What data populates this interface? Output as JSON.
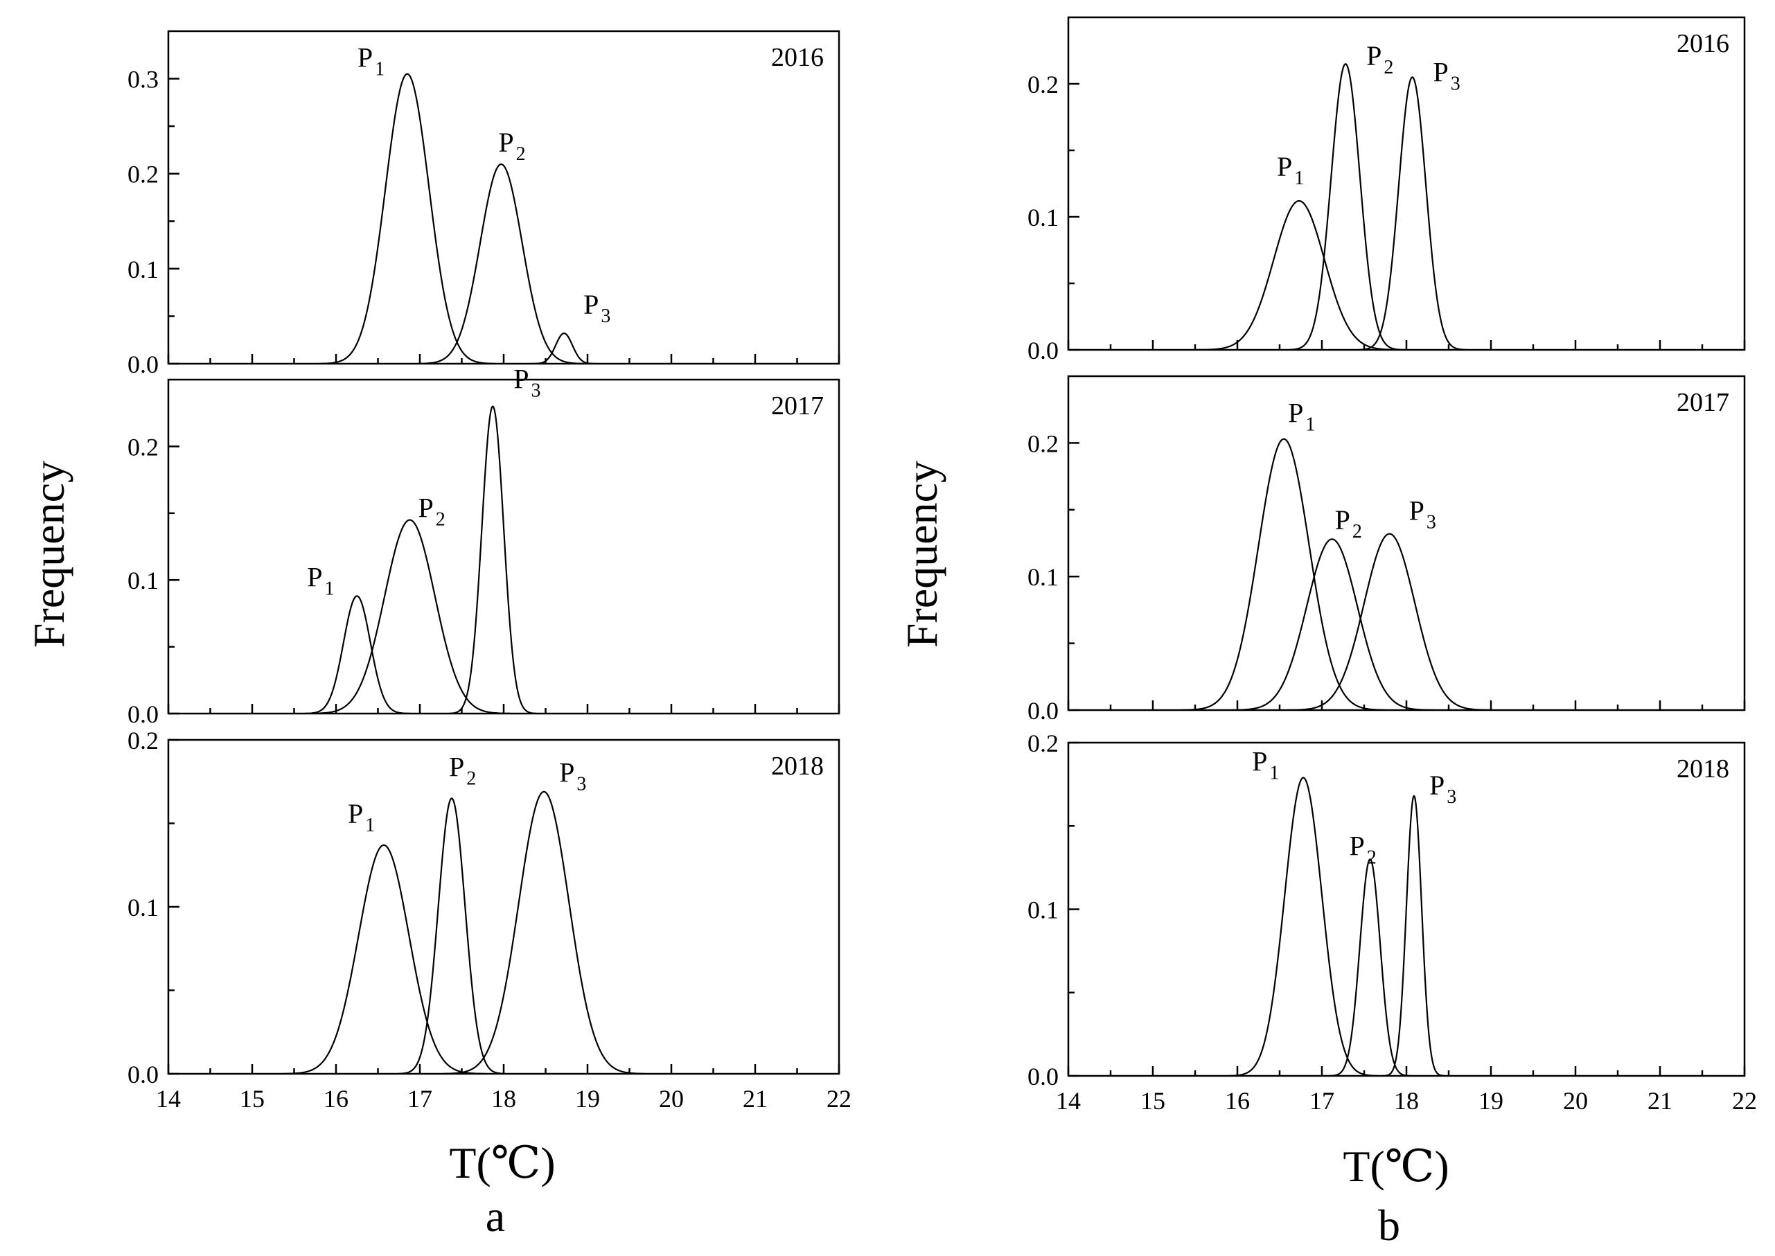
{
  "chart_data": [
    {
      "type": "line",
      "panel": "a",
      "year": "2016",
      "xlabel": "T(℃)",
      "ylabel": "Frequency",
      "xlim": [
        14,
        22
      ],
      "ylim": [
        0,
        0.35
      ],
      "yticks": [
        "0.0",
        "0.1",
        "0.2",
        "0.3"
      ],
      "series": [
        {
          "name": "P",
          "sub": "1",
          "mean": 16.85,
          "sigma": 0.26,
          "peak": 0.305
        },
        {
          "name": "P",
          "sub": "2",
          "mean": 17.97,
          "sigma": 0.25,
          "peak": 0.21
        },
        {
          "name": "P",
          "sub": "3",
          "mean": 18.72,
          "sigma": 0.1,
          "peak": 0.032
        }
      ]
    },
    {
      "type": "line",
      "panel": "a",
      "year": "2017",
      "xlabel": "T(℃)",
      "ylabel": "Frequency",
      "xlim": [
        14,
        22
      ],
      "ylim": [
        0,
        0.25
      ],
      "yticks": [
        "0.0",
        "0.1",
        "0.2"
      ],
      "series": [
        {
          "name": "P",
          "sub": "1",
          "mean": 16.25,
          "sigma": 0.16,
          "peak": 0.088
        },
        {
          "name": "P",
          "sub": "2",
          "mean": 16.88,
          "sigma": 0.3,
          "peak": 0.145
        },
        {
          "name": "P",
          "sub": "3",
          "mean": 17.87,
          "sigma": 0.13,
          "peak": 0.23
        }
      ]
    },
    {
      "type": "line",
      "panel": "a",
      "year": "2018",
      "xlabel": "T(℃)",
      "ylabel": "Frequency",
      "xlim": [
        14,
        22
      ],
      "ylim": [
        0,
        0.2
      ],
      "yticks": [
        "0.0",
        "0.1",
        "0.2"
      ],
      "xticks": [
        "14",
        "15",
        "16",
        "17",
        "18",
        "19",
        "20",
        "21",
        "22"
      ],
      "series": [
        {
          "name": "P",
          "sub": "1",
          "mean": 16.57,
          "sigma": 0.3,
          "peak": 0.137
        },
        {
          "name": "P",
          "sub": "2",
          "mean": 17.38,
          "sigma": 0.16,
          "peak": 0.165
        },
        {
          "name": "P",
          "sub": "3",
          "mean": 18.48,
          "sigma": 0.3,
          "peak": 0.169
        }
      ]
    },
    {
      "type": "line",
      "panel": "b",
      "year": "2016",
      "xlabel": "T(℃)",
      "ylabel": "Frequency",
      "xlim": [
        14,
        22
      ],
      "ylim": [
        0,
        0.25
      ],
      "yticks": [
        "0.0",
        "0.1",
        "0.2"
      ],
      "series": [
        {
          "name": "P",
          "sub": "1",
          "mean": 16.73,
          "sigma": 0.3,
          "peak": 0.112
        },
        {
          "name": "P",
          "sub": "2",
          "mean": 17.28,
          "sigma": 0.17,
          "peak": 0.215
        },
        {
          "name": "P",
          "sub": "3",
          "mean": 18.07,
          "sigma": 0.16,
          "peak": 0.205
        }
      ]
    },
    {
      "type": "line",
      "panel": "b",
      "year": "2017",
      "xlabel": "T(℃)",
      "ylabel": "Frequency",
      "xlim": [
        14,
        22
      ],
      "ylim": [
        0,
        0.25
      ],
      "yticks": [
        "0.0",
        "0.1",
        "0.2"
      ],
      "series": [
        {
          "name": "P",
          "sub": "1",
          "mean": 16.55,
          "sigma": 0.3,
          "peak": 0.203
        },
        {
          "name": "P",
          "sub": "2",
          "mean": 17.12,
          "sigma": 0.3,
          "peak": 0.128
        },
        {
          "name": "P",
          "sub": "3",
          "mean": 17.8,
          "sigma": 0.3,
          "peak": 0.132
        }
      ]
    },
    {
      "type": "line",
      "panel": "b",
      "year": "2018",
      "xlabel": "T(℃)",
      "ylabel": "Frequency",
      "xlim": [
        14,
        22
      ],
      "ylim": [
        0,
        0.2
      ],
      "yticks": [
        "0.0",
        "0.1",
        "0.2"
      ],
      "xticks": [
        "14",
        "15",
        "16",
        "17",
        "18",
        "19",
        "20",
        "21",
        "22"
      ],
      "series": [
        {
          "name": "P",
          "sub": "1",
          "mean": 16.78,
          "sigma": 0.22,
          "peak": 0.179
        },
        {
          "name": "P",
          "sub": "2",
          "mean": 17.57,
          "sigma": 0.12,
          "peak": 0.13
        },
        {
          "name": "P",
          "sub": "3",
          "mean": 18.09,
          "sigma": 0.09,
          "peak": 0.168
        }
      ]
    }
  ],
  "labels": {
    "ylabel": "Frequency",
    "xlabel": "T(℃)",
    "panel_a": "a",
    "panel_b": "b"
  }
}
